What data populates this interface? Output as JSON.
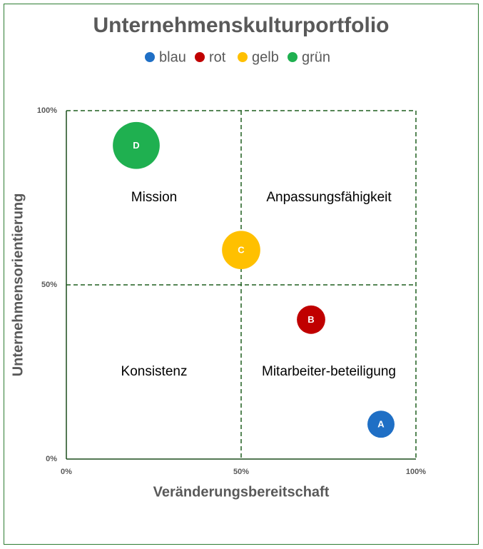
{
  "chart_data": {
    "type": "bubble",
    "title": "Unternehmenskulturportfolio",
    "xlabel": "Veränderungsbereitschaft",
    "ylabel": "Unternehmensorientierung",
    "xlim": [
      0,
      100
    ],
    "ylim": [
      0,
      100
    ],
    "xticks": [
      {
        "value": 0,
        "label": "0%"
      },
      {
        "value": 50,
        "label": "50%"
      },
      {
        "value": 100,
        "label": "100%"
      }
    ],
    "yticks": [
      {
        "value": 0,
        "label": "0%"
      },
      {
        "value": 50,
        "label": "50%"
      },
      {
        "value": 100,
        "label": "100%"
      }
    ],
    "grid": true,
    "legend": "top",
    "series": [
      {
        "name": "blau",
        "color": "#1f6fc5",
        "x": [
          90
        ],
        "values": [
          10
        ],
        "sizes": [
          10
        ],
        "labels": [
          "A"
        ]
      },
      {
        "name": "rot",
        "color": "#c00000",
        "x": [
          70
        ],
        "values": [
          40
        ],
        "sizes": [
          11
        ],
        "labels": [
          "B"
        ]
      },
      {
        "name": "gelb",
        "color": "#ffc000",
        "x": [
          50
        ],
        "values": [
          60
        ],
        "sizes": [
          20
        ],
        "labels": [
          "C"
        ]
      },
      {
        "name": "grün",
        "color": "#1fb050",
        "x": [
          20
        ],
        "values": [
          90
        ],
        "sizes": [
          30
        ],
        "labels": [
          "D"
        ]
      }
    ],
    "annotations": [
      "Mission",
      "Anpassungsfähigkeit",
      "Konsistenz",
      "Mitarbeiter-beteiligung"
    ]
  }
}
